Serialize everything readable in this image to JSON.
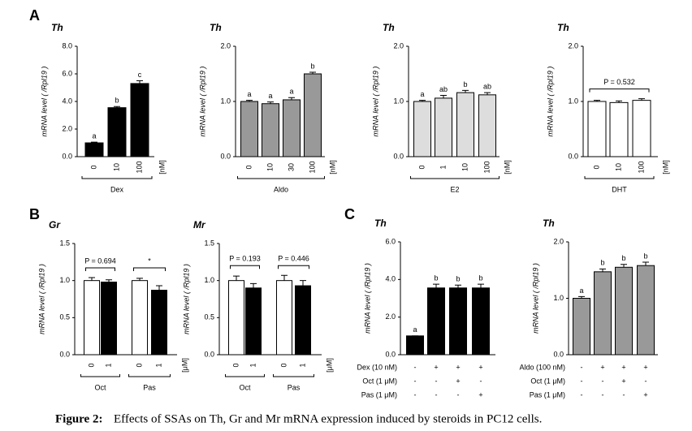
{
  "panel_labels": [
    "A",
    "B",
    "C"
  ],
  "caption": {
    "label": "Figure 2:",
    "text": "Effects of SSAs on Th, Gr and Mr mRNA expression induced by steroids in PC12 cells."
  },
  "chart_data": [
    {
      "type": "bar",
      "title": "Th",
      "ylabel": "mRNA level ( /Rpl19 )",
      "categories": [
        "0",
        "10",
        "100"
      ],
      "group_labels": [
        "Dex"
      ],
      "unit": "[nM]",
      "values": [
        1.0,
        3.55,
        5.3
      ],
      "errors": [
        0.05,
        0.08,
        0.2
      ],
      "letters": [
        "a",
        "b",
        "c"
      ],
      "colors": [
        "#000000",
        "#000000",
        "#000000"
      ],
      "ylim": [
        0,
        8
      ],
      "yticks": [
        {
          "value": 0,
          "label": "0.0"
        },
        {
          "value": 2,
          "label": "2.0"
        },
        {
          "value": 4,
          "label": "4.0"
        },
        {
          "value": 6,
          "label": "6.0"
        },
        {
          "value": 8,
          "label": "8.0"
        }
      ]
    },
    {
      "type": "bar",
      "title": "Th",
      "ylabel": "mRNA level ( /Rpl19 )",
      "categories": [
        "0",
        "10",
        "30",
        "100"
      ],
      "group_labels": [
        "Aldo"
      ],
      "unit": "[nM]",
      "values": [
        1.0,
        0.96,
        1.03,
        1.5
      ],
      "errors": [
        0.02,
        0.03,
        0.04,
        0.03
      ],
      "letters": [
        "a",
        "a",
        "a",
        "b"
      ],
      "colors": [
        "#999999",
        "#999999",
        "#999999",
        "#999999"
      ],
      "ylim": [
        0,
        2
      ],
      "yticks": [
        {
          "value": 0,
          "label": "0.0"
        },
        {
          "value": 1,
          "label": "1.0"
        },
        {
          "value": 2,
          "label": "2.0"
        }
      ]
    },
    {
      "type": "bar",
      "title": "Th",
      "ylabel": "mRNA level ( /Rpl19 )",
      "categories": [
        "0",
        "1",
        "10",
        "100"
      ],
      "group_labels": [
        "E2"
      ],
      "unit": "[nM]",
      "values": [
        1.0,
        1.06,
        1.16,
        1.12
      ],
      "errors": [
        0.02,
        0.05,
        0.04,
        0.04
      ],
      "letters": [
        "a",
        "ab",
        "b",
        "ab"
      ],
      "colors": [
        "#dddddd",
        "#dddddd",
        "#dddddd",
        "#dddddd"
      ],
      "ylim": [
        0,
        2
      ],
      "yticks": [
        {
          "value": 0,
          "label": "0.0"
        },
        {
          "value": 1,
          "label": "1.0"
        },
        {
          "value": 2,
          "label": "2.0"
        }
      ]
    },
    {
      "type": "bar",
      "title": "Th",
      "ylabel": "mRNA level ( /Rpl19 )",
      "categories": [
        "0",
        "10",
        "100"
      ],
      "group_labels": [
        "DHT"
      ],
      "unit": "[nM]",
      "values": [
        1.0,
        0.98,
        1.02
      ],
      "errors": [
        0.02,
        0.03,
        0.03
      ],
      "comparisons": [
        "P = 0.532"
      ],
      "colors": [
        "#ffffff",
        "#ffffff",
        "#ffffff"
      ],
      "ylim": [
        0,
        2
      ],
      "yticks": [
        {
          "value": 0,
          "label": "0.0"
        },
        {
          "value": 1,
          "label": "1.0"
        },
        {
          "value": 2,
          "label": "2.0"
        }
      ]
    },
    {
      "type": "bar",
      "title": "Gr",
      "ylabel": "mRNA level ( /Rpl19 )",
      "categories": [
        "0",
        "1",
        "0",
        "1"
      ],
      "group_labels": [
        "Oct",
        "Pas"
      ],
      "unit": "[μM]",
      "values": [
        1.0,
        0.98,
        1.0,
        0.87
      ],
      "errors": [
        0.04,
        0.03,
        0.03,
        0.06
      ],
      "comparisons": [
        "P = 0.694",
        "*"
      ],
      "colors": [
        "#ffffff",
        "#000000",
        "#ffffff",
        "#000000"
      ],
      "ylim": [
        0,
        1.5
      ],
      "yticks": [
        {
          "value": 0,
          "label": "0.0"
        },
        0.5,
        {
          "value": 1,
          "label": "1.0"
        },
        1.5
      ]
    },
    {
      "type": "bar",
      "title": "Mr",
      "ylabel": "mRNA level ( /Rpl19 )",
      "categories": [
        "0",
        "1",
        "0",
        "1"
      ],
      "group_labels": [
        "Oct",
        "Pas"
      ],
      "unit": "[μM]",
      "values": [
        1.0,
        0.9,
        1.0,
        0.93
      ],
      "errors": [
        0.06,
        0.06,
        0.07,
        0.07
      ],
      "comparisons": [
        "P = 0.193",
        "P = 0.446"
      ],
      "colors": [
        "#ffffff",
        "#000000",
        "#ffffff",
        "#000000"
      ],
      "ylim": [
        0,
        1.5
      ],
      "yticks": [
        {
          "value": 0,
          "label": "0.0"
        },
        0.5,
        {
          "value": 1,
          "label": "1.0"
        },
        1.5
      ]
    },
    {
      "type": "bar",
      "title": "Th",
      "ylabel": "mRNA level ( /Rpl19 )",
      "conditions": [
        {
          "name": "Dex (10 nM)",
          "marks": [
            "-",
            "+",
            "+",
            "+"
          ]
        },
        {
          "name": "Oct (1 μM)",
          "marks": [
            "-",
            "-",
            "+",
            "-"
          ]
        },
        {
          "name": "Pas (1 μM)",
          "marks": [
            "-",
            "-",
            "-",
            "+"
          ]
        }
      ],
      "values": [
        1.0,
        3.55,
        3.55,
        3.55
      ],
      "errors": [
        0,
        0.2,
        0.15,
        0.2
      ],
      "letters": [
        "a",
        "b",
        "b",
        "b"
      ],
      "colors": [
        "#000000",
        "#000000",
        "#000000",
        "#000000"
      ],
      "ylim": [
        0,
        6
      ],
      "yticks": [
        {
          "value": 0,
          "label": "0.0"
        },
        {
          "value": 2,
          "label": "2.0"
        },
        {
          "value": 4,
          "label": "4.0"
        },
        {
          "value": 6,
          "label": "6.0"
        }
      ]
    },
    {
      "type": "bar",
      "title": "Th",
      "ylabel": "mRNA level ( /Rpl19 )",
      "conditions": [
        {
          "name": "Aldo (100 nM)",
          "marks": [
            "-",
            "+",
            "+",
            "+"
          ]
        },
        {
          "name": "Oct (1 μM)",
          "marks": [
            "-",
            "-",
            "+",
            "-"
          ]
        },
        {
          "name": "Pas (1 μM)",
          "marks": [
            "-",
            "-",
            "-",
            "+"
          ]
        }
      ],
      "values": [
        1.0,
        1.47,
        1.55,
        1.58
      ],
      "errors": [
        0.03,
        0.05,
        0.05,
        0.06
      ],
      "letters": [
        "a",
        "b",
        "b",
        "b"
      ],
      "colors": [
        "#999999",
        "#999999",
        "#999999",
        "#999999"
      ],
      "ylim": [
        0,
        2
      ],
      "yticks": [
        {
          "value": 0,
          "label": "0.0"
        },
        {
          "value": 1,
          "label": "1.0"
        },
        {
          "value": 2,
          "label": "2.0"
        }
      ]
    }
  ]
}
